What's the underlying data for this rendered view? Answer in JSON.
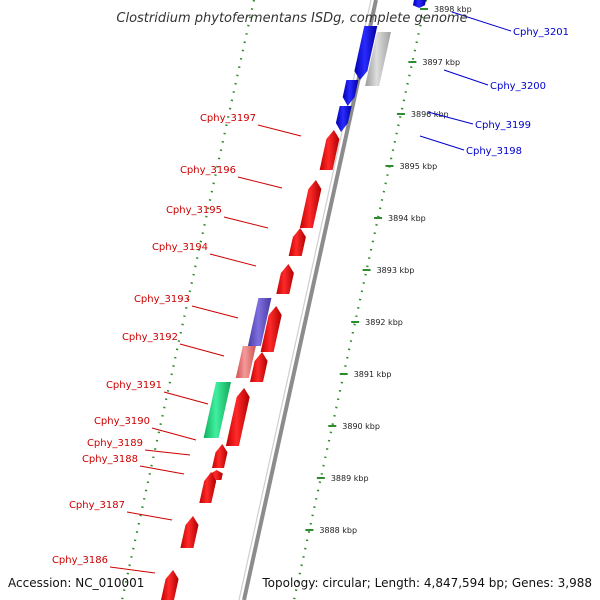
{
  "title": "Clostridium phytofermentans ISDg, complete genome",
  "footer": {
    "accession": "Accession: NC_010001",
    "topology": "Topology: circular; Length: 4,847,594 bp; Genes: 3,988"
  },
  "colors": {
    "backbone": "#8c8c8c",
    "dotted_track": "#2e8b2e",
    "plus_label": "#cc0000",
    "minus_label": "#0000cc",
    "red": "#ff0000",
    "blue": "#0000ff",
    "gray": "#b8b8b8",
    "purple": "#6a5acd",
    "pink": "#ee7777",
    "green": "#22dd88"
  },
  "ticks": [
    {
      "label": "3898 kbp"
    },
    {
      "label": "3897 kbp"
    },
    {
      "label": "3896 kbp"
    },
    {
      "label": "3895 kbp"
    },
    {
      "label": "3894 kbp"
    },
    {
      "label": "3893 kbp"
    },
    {
      "label": "3892 kbp"
    },
    {
      "label": "3891 kbp"
    },
    {
      "label": "3890 kbp"
    },
    {
      "label": "3889 kbp"
    },
    {
      "label": "3888 kbp"
    }
  ],
  "genes_plus": [
    {
      "label": "Cphy_3197",
      "color": "red"
    },
    {
      "label": "Cphy_3196",
      "color": "red"
    },
    {
      "label": "Cphy_3195",
      "color": "red"
    },
    {
      "label": "Cphy_3194",
      "color": "red"
    },
    {
      "label": "Cphy_3193",
      "color": "purple"
    },
    {
      "label": "Cphy_3192",
      "color": "pink"
    },
    {
      "label": "Cphy_3191",
      "color": "green"
    },
    {
      "label": "Cphy_3190",
      "color": "red"
    },
    {
      "label": "Cphy_3189",
      "color": "red"
    },
    {
      "label": "Cphy_3188",
      "color": "red"
    },
    {
      "label": "Cphy_3187",
      "color": "red"
    },
    {
      "label": "Cphy_3186",
      "color": "red"
    }
  ],
  "genes_minus": [
    {
      "label": "Cphy_3201",
      "color": "blue"
    },
    {
      "label": "Cphy_3200",
      "color": "gray"
    },
    {
      "label": "Cphy_3199",
      "color": "blue"
    },
    {
      "label": "Cphy_3198",
      "color": "blue"
    }
  ]
}
